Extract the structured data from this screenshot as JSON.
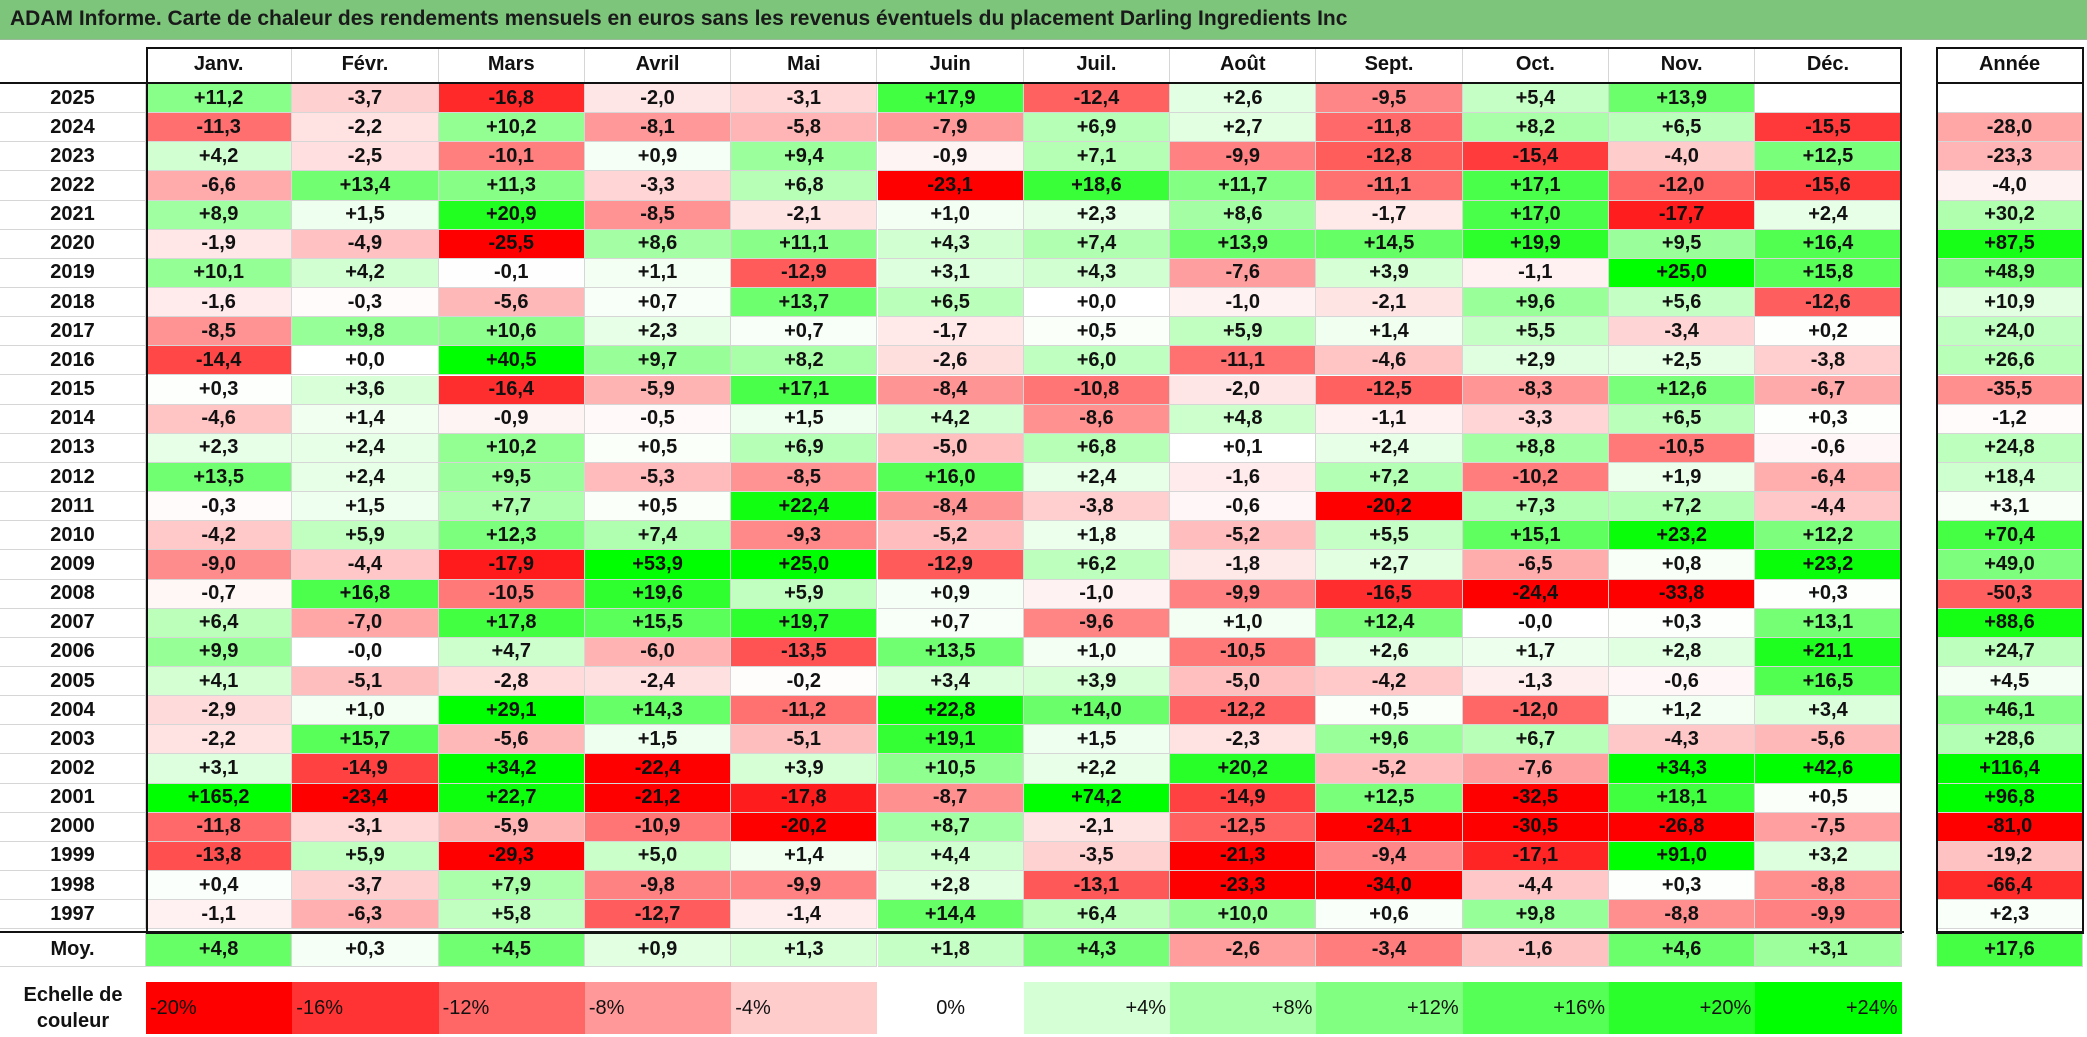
{
  "title": "ADAM Informe. Carte de chaleur des rendements mensuels en euros sans les revenus éventuels du placement Darling Ingredients Inc",
  "chart_data": {
    "type": "heatmap",
    "title": "ADAM Informe. Carte de chaleur des rendements mensuels en euros sans les revenus éventuels du placement Darling Ingredients Inc",
    "months": [
      "Janv.",
      "Févr.",
      "Mars",
      "Avril",
      "Mai",
      "Juin",
      "Juil.",
      "Août",
      "Sept.",
      "Oct.",
      "Nov.",
      "Déc."
    ],
    "year_header": "Année",
    "rows": [
      {
        "year": "2025",
        "values": [
          "+11,2",
          "-3,7",
          "-16,8",
          "-2,0",
          "-3,1",
          "+17,9",
          "-12,4",
          "+2,6",
          "-9,5",
          "+5,4",
          "+13,9",
          ""
        ],
        "annual": ""
      },
      {
        "year": "2024",
        "values": [
          "-11,3",
          "-2,2",
          "+10,2",
          "-8,1",
          "-5,8",
          "-7,9",
          "+6,9",
          "+2,7",
          "-11,8",
          "+8,2",
          "+6,5",
          "-15,5"
        ],
        "annual": "-28,0"
      },
      {
        "year": "2023",
        "values": [
          "+4,2",
          "-2,5",
          "-10,1",
          "+0,9",
          "+9,4",
          "-0,9",
          "+7,1",
          "-9,9",
          "-12,8",
          "-15,4",
          "-4,0",
          "+12,5"
        ],
        "annual": "-23,3"
      },
      {
        "year": "2022",
        "values": [
          "-6,6",
          "+13,4",
          "+11,3",
          "-3,3",
          "+6,8",
          "-23,1",
          "+18,6",
          "+11,7",
          "-11,1",
          "+17,1",
          "-12,0",
          "-15,6"
        ],
        "annual": "-4,0"
      },
      {
        "year": "2021",
        "values": [
          "+8,9",
          "+1,5",
          "+20,9",
          "-8,5",
          "-2,1",
          "+1,0",
          "+2,3",
          "+8,6",
          "-1,7",
          "+17,0",
          "-17,7",
          "+2,4"
        ],
        "annual": "+30,2"
      },
      {
        "year": "2020",
        "values": [
          "-1,9",
          "-4,9",
          "-25,5",
          "+8,6",
          "+11,1",
          "+4,3",
          "+7,4",
          "+13,9",
          "+14,5",
          "+19,9",
          "+9,5",
          "+16,4"
        ],
        "annual": "+87,5"
      },
      {
        "year": "2019",
        "values": [
          "+10,1",
          "+4,2",
          "-0,1",
          "+1,1",
          "-12,9",
          "+3,1",
          "+4,3",
          "-7,6",
          "+3,9",
          "-1,1",
          "+25,0",
          "+15,8"
        ],
        "annual": "+48,9"
      },
      {
        "year": "2018",
        "values": [
          "-1,6",
          "-0,3",
          "-5,6",
          "+0,7",
          "+13,7",
          "+6,5",
          "+0,0",
          "-1,0",
          "-2,1",
          "+9,6",
          "+5,6",
          "-12,6"
        ],
        "annual": "+10,9"
      },
      {
        "year": "2017",
        "values": [
          "-8,5",
          "+9,8",
          "+10,6",
          "+2,3",
          "+0,7",
          "-1,7",
          "+0,5",
          "+5,9",
          "+1,4",
          "+5,5",
          "-3,4",
          "+0,2"
        ],
        "annual": "+24,0"
      },
      {
        "year": "2016",
        "values": [
          "-14,4",
          "+0,0",
          "+40,5",
          "+9,7",
          "+8,2",
          "-2,6",
          "+6,0",
          "-11,1",
          "-4,6",
          "+2,9",
          "+2,5",
          "-3,8"
        ],
        "annual": "+26,6"
      },
      {
        "year": "2015",
        "values": [
          "+0,3",
          "+3,6",
          "-16,4",
          "-5,9",
          "+17,1",
          "-8,4",
          "-10,8",
          "-2,0",
          "-12,5",
          "-8,3",
          "+12,6",
          "-6,7"
        ],
        "annual": "-35,5"
      },
      {
        "year": "2014",
        "values": [
          "-4,6",
          "+1,4",
          "-0,9",
          "-0,5",
          "+1,5",
          "+4,2",
          "-8,6",
          "+4,8",
          "-1,1",
          "-3,3",
          "+6,5",
          "+0,3"
        ],
        "annual": "-1,2"
      },
      {
        "year": "2013",
        "values": [
          "+2,3",
          "+2,4",
          "+10,2",
          "+0,5",
          "+6,9",
          "-5,0",
          "+6,8",
          "+0,1",
          "+2,4",
          "+8,8",
          "-10,5",
          "-0,6"
        ],
        "annual": "+24,8"
      },
      {
        "year": "2012",
        "values": [
          "+13,5",
          "+2,4",
          "+9,5",
          "-5,3",
          "-8,5",
          "+16,0",
          "+2,4",
          "-1,6",
          "+7,2",
          "-10,2",
          "+1,9",
          "-6,4"
        ],
        "annual": "+18,4"
      },
      {
        "year": "2011",
        "values": [
          "-0,3",
          "+1,5",
          "+7,7",
          "+0,5",
          "+22,4",
          "-8,4",
          "-3,8",
          "-0,6",
          "-20,2",
          "+7,3",
          "+7,2",
          "-4,4"
        ],
        "annual": "+3,1"
      },
      {
        "year": "2010",
        "values": [
          "-4,2",
          "+5,9",
          "+12,3",
          "+7,4",
          "-9,3",
          "-5,2",
          "+1,8",
          "-5,2",
          "+5,5",
          "+15,1",
          "+23,2",
          "+12,2"
        ],
        "annual": "+70,4"
      },
      {
        "year": "2009",
        "values": [
          "-9,0",
          "-4,4",
          "-17,9",
          "+53,9",
          "+25,0",
          "-12,9",
          "+6,2",
          "-1,8",
          "+2,7",
          "-6,5",
          "+0,8",
          "+23,2"
        ],
        "annual": "+49,0"
      },
      {
        "year": "2008",
        "values": [
          "-0,7",
          "+16,8",
          "-10,5",
          "+19,6",
          "+5,9",
          "+0,9",
          "-1,0",
          "-9,9",
          "-16,5",
          "-24,4",
          "-33,8",
          "+0,3"
        ],
        "annual": "-50,3"
      },
      {
        "year": "2007",
        "values": [
          "+6,4",
          "-7,0",
          "+17,8",
          "+15,5",
          "+19,7",
          "+0,7",
          "-9,6",
          "+1,0",
          "+12,4",
          "-0,0",
          "+0,3",
          "+13,1"
        ],
        "annual": "+88,6"
      },
      {
        "year": "2006",
        "values": [
          "+9,9",
          "-0,0",
          "+4,7",
          "-6,0",
          "-13,5",
          "+13,5",
          "+1,0",
          "-10,5",
          "+2,6",
          "+1,7",
          "+2,8",
          "+21,1"
        ],
        "annual": "+24,7"
      },
      {
        "year": "2005",
        "values": [
          "+4,1",
          "-5,1",
          "-2,8",
          "-2,4",
          "-0,2",
          "+3,4",
          "+3,9",
          "-5,0",
          "-4,2",
          "-1,3",
          "-0,6",
          "+16,5"
        ],
        "annual": "+4,5"
      },
      {
        "year": "2004",
        "values": [
          "-2,9",
          "+1,0",
          "+29,1",
          "+14,3",
          "-11,2",
          "+22,8",
          "+14,0",
          "-12,2",
          "+0,5",
          "-12,0",
          "+1,2",
          "+3,4"
        ],
        "annual": "+46,1"
      },
      {
        "year": "2003",
        "values": [
          "-2,2",
          "+15,7",
          "-5,6",
          "+1,5",
          "-5,1",
          "+19,1",
          "+1,5",
          "-2,3",
          "+9,6",
          "+6,7",
          "-4,3",
          "-5,6"
        ],
        "annual": "+28,6"
      },
      {
        "year": "2002",
        "values": [
          "+3,1",
          "-14,9",
          "+34,2",
          "-22,4",
          "+3,9",
          "+10,5",
          "+2,2",
          "+20,2",
          "-5,2",
          "-7,6",
          "+34,3",
          "+42,6"
        ],
        "annual": "+116,4"
      },
      {
        "year": "2001",
        "values": [
          "+165,2",
          "-23,4",
          "+22,7",
          "-21,2",
          "-17,8",
          "-8,7",
          "+74,2",
          "-14,9",
          "+12,5",
          "-32,5",
          "+18,1",
          "+0,5"
        ],
        "annual": "+96,8"
      },
      {
        "year": "2000",
        "values": [
          "-11,8",
          "-3,1",
          "-5,9",
          "-10,9",
          "-20,2",
          "+8,7",
          "-2,1",
          "-12,5",
          "-24,1",
          "-30,5",
          "-26,8",
          "-7,5"
        ],
        "annual": "-81,0"
      },
      {
        "year": "1999",
        "values": [
          "-13,8",
          "+5,9",
          "-29,3",
          "+5,0",
          "+1,4",
          "+4,4",
          "-3,5",
          "-21,3",
          "-9,4",
          "-17,1",
          "+91,0",
          "+3,2"
        ],
        "annual": "-19,2"
      },
      {
        "year": "1998",
        "values": [
          "+0,4",
          "-3,7",
          "+7,9",
          "-9,8",
          "-9,9",
          "+2,8",
          "-13,1",
          "-23,3",
          "-34,0",
          "-4,4",
          "+0,3",
          "-8,8"
        ],
        "annual": "-66,4"
      },
      {
        "year": "1997",
        "values": [
          "-1,1",
          "-6,3",
          "+5,8",
          "-12,7",
          "-1,4",
          "+14,4",
          "+6,4",
          "+10,0",
          "+0,6",
          "+9,8",
          "-8,8",
          "-9,9"
        ],
        "annual": "+2,3"
      }
    ],
    "average": {
      "label": "Moy.",
      "values": [
        "+4,8",
        "+0,3",
        "+4,5",
        "+0,9",
        "+1,3",
        "+1,8",
        "+4,3",
        "-2,6",
        "-3,4",
        "-1,6",
        "+4,6",
        "+3,1"
      ],
      "annual": "+17,6"
    },
    "scale": {
      "label_line1": "Echelle de",
      "label_line2": "couleur",
      "steps": [
        "-20%",
        "-16%",
        "-12%",
        "-8%",
        "-4%",
        "0%",
        "+4%",
        "+8%",
        "+12%",
        "+16%",
        "+20%",
        "+24%"
      ],
      "step_values": [
        -20,
        -16,
        -12,
        -8,
        -4,
        0,
        4,
        8,
        12,
        16,
        20,
        24
      ]
    },
    "colors": {
      "negative_max": "#ff0000",
      "neutral": "#ffffff",
      "positive_max": "#00ff00"
    }
  }
}
